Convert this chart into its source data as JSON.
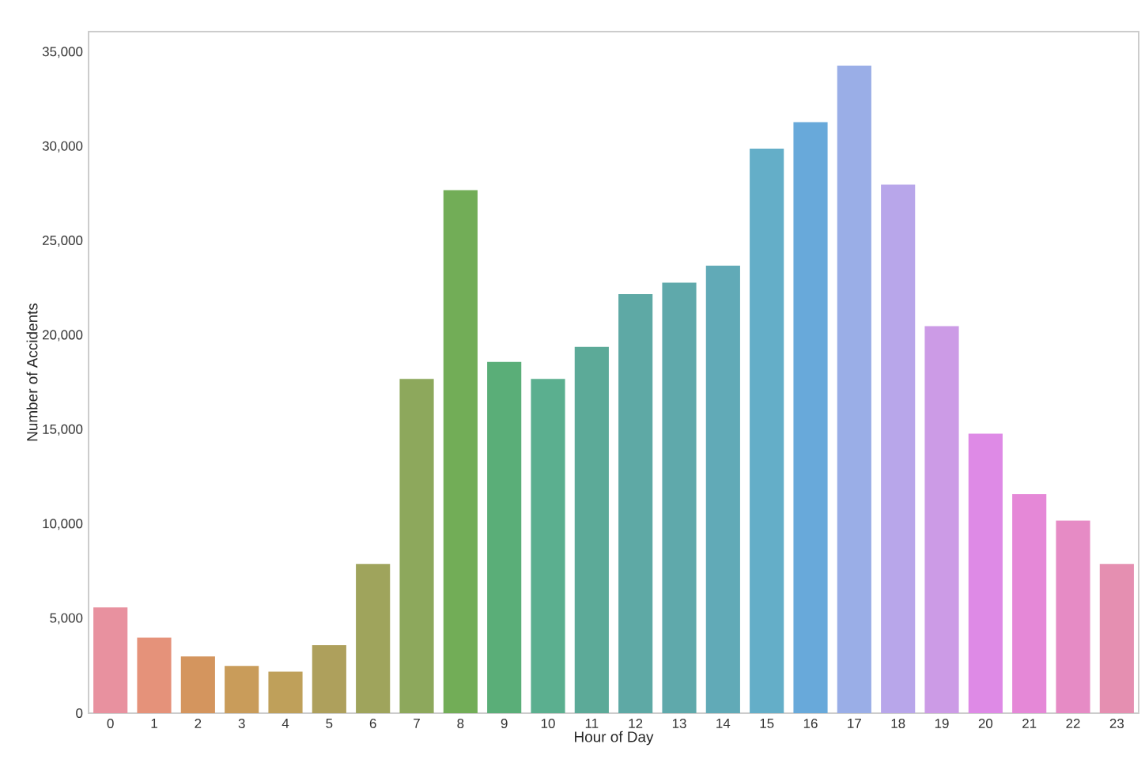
{
  "chart_data": {
    "type": "bar",
    "xlabel": "Hour of Day",
    "ylabel": "Number of Accidents",
    "categories": [
      "0",
      "1",
      "2",
      "3",
      "4",
      "5",
      "6",
      "7",
      "8",
      "9",
      "10",
      "11",
      "12",
      "13",
      "14",
      "15",
      "16",
      "17",
      "18",
      "19",
      "20",
      "21",
      "22",
      "23"
    ],
    "values": [
      5600,
      4000,
      3000,
      2500,
      2200,
      3600,
      7900,
      17700,
      27700,
      18600,
      17700,
      19400,
      22200,
      22800,
      23700,
      29900,
      31300,
      34300,
      28000,
      20500,
      14800,
      11600,
      10200,
      7900
    ],
    "colors": [
      "#e8919f",
      "#e5927a",
      "#d4955e",
      "#c99c5a",
      "#bfa05a",
      "#aea05c",
      "#9fa45c",
      "#8da85c",
      "#72ad57",
      "#5aae78",
      "#5baf8f",
      "#5caa98",
      "#5ea9a5",
      "#5fa9ab",
      "#61aab7",
      "#64aec8",
      "#68a9da",
      "#9aaee7",
      "#b8a6ea",
      "#cc9be6",
      "#de8ae6",
      "#e588d7",
      "#e68bc5",
      "#e58fb1"
    ],
    "ylim": [
      0,
      36100
    ],
    "yticks": [
      {
        "value": 0,
        "label": "0"
      },
      {
        "value": 5000,
        "label": "5,000"
      },
      {
        "value": 10000,
        "label": "10,000"
      },
      {
        "value": 15000,
        "label": "15,000"
      },
      {
        "value": 20000,
        "label": "20,000"
      },
      {
        "value": 25000,
        "label": "25,000"
      },
      {
        "value": 30000,
        "label": "30,000"
      },
      {
        "value": 35000,
        "label": "35,000"
      }
    ],
    "grid": false
  }
}
